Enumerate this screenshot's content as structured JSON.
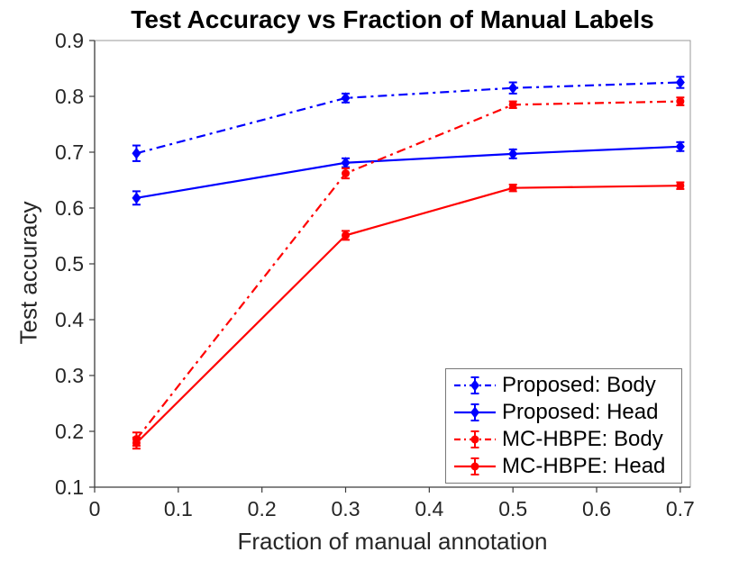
{
  "chart_data": {
    "type": "line",
    "title": "Test Accuracy vs Fraction of Manual Labels",
    "xlabel": "Fraction of manual annotation",
    "ylabel": "Test accuracy",
    "x": [
      0.05,
      0.3,
      0.5,
      0.7
    ],
    "xlim": [
      0,
      0.712
    ],
    "ylim": [
      0.1,
      0.9
    ],
    "xticks": [
      "0",
      "0.1",
      "0.2",
      "0.3",
      "0.4",
      "0.5",
      "0.6",
      "0.7"
    ],
    "yticks": [
      "0.1",
      "0.2",
      "0.3",
      "0.4",
      "0.5",
      "0.6",
      "0.7",
      "0.8",
      "0.9"
    ],
    "grid": false,
    "legend_position": "lower right",
    "axis_color": "#262626",
    "box_color": "#9a9a9a",
    "series": [
      {
        "name": "Proposed: Body",
        "values": [
          0.698,
          0.797,
          0.815,
          0.825
        ],
        "errors": [
          0.014,
          0.008,
          0.01,
          0.01
        ],
        "color": "#0000ff",
        "line_style": "dash-dot",
        "marker": "diamond"
      },
      {
        "name": "Proposed: Head",
        "values": [
          0.618,
          0.681,
          0.697,
          0.71
        ],
        "errors": [
          0.012,
          0.008,
          0.008,
          0.008
        ],
        "color": "#0000ff",
        "line_style": "solid",
        "marker": "diamond"
      },
      {
        "name": "MC-HBPE: Body",
        "values": [
          0.186,
          0.662,
          0.785,
          0.791
        ],
        "errors": [
          0.012,
          0.009,
          0.006,
          0.007
        ],
        "color": "#ff0000",
        "line_style": "dash-dot",
        "marker": "circle"
      },
      {
        "name": "MC-HBPE: Head",
        "values": [
          0.179,
          0.551,
          0.636,
          0.64
        ],
        "errors": [
          0.01,
          0.008,
          0.006,
          0.006
        ],
        "color": "#ff0000",
        "line_style": "solid",
        "marker": "circle"
      }
    ]
  }
}
